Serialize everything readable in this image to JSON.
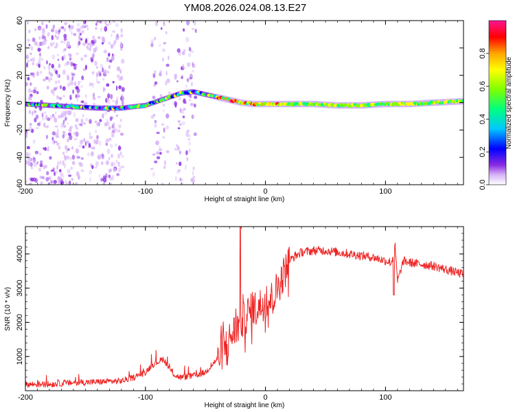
{
  "title": "YM08.2026.024.08.13.E27",
  "chart_data": [
    {
      "type": "heatmap",
      "title": "YM08.2026.024.08.13.E27",
      "xlabel": "Height of straight line (km)",
      "ylabel": "Frequency (Hz)",
      "xlim": [
        -200,
        165
      ],
      "ylim": [
        -60,
        60
      ],
      "xticks": [
        -200,
        -100,
        0,
        100
      ],
      "yticks": [
        -60,
        -40,
        -20,
        0,
        20,
        40,
        60
      ],
      "colorbar": {
        "label": "Normalized spectral amplitude",
        "range": [
          0,
          1
        ],
        "ticks": [
          0.0,
          0.2,
          0.4,
          0.6,
          0.8
        ],
        "colors": [
          "#ffffff",
          "#d8b4f8",
          "#8a2be2",
          "#0000ff",
          "#00c8ff",
          "#00ff7f",
          "#7fff00",
          "#ffff00",
          "#ffa500",
          "#ff0000",
          "#ff1493"
        ]
      },
      "ridge": {
        "x": [
          -200,
          -180,
          -160,
          -140,
          -120,
          -100,
          -90,
          -80,
          -70,
          -60,
          -50,
          -40,
          -30,
          -20,
          -10,
          0,
          20,
          40,
          60,
          80,
          100,
          120,
          140,
          165
        ],
        "freq": [
          -1,
          -2,
          -3,
          -4,
          -4,
          -2,
          1,
          4,
          7,
          8,
          6,
          4,
          2,
          0,
          -1,
          -1,
          -1,
          -1,
          -2,
          -2,
          -1,
          -1,
          0,
          1
        ]
      }
    },
    {
      "type": "line",
      "xlabel": "Height of straight line (km)",
      "ylabel": "SNR (10 * v/v)",
      "xlim": [
        -200,
        165
      ],
      "ylim": [
        0,
        4800
      ],
      "xticks": [
        -200,
        -100,
        0,
        100
      ],
      "yticks": [
        1000,
        2000,
        3000,
        4000
      ],
      "color": "#ee2222",
      "series": [
        {
          "name": "SNR",
          "x": [
            -200,
            -180,
            -160,
            -140,
            -120,
            -110,
            -100,
            -95,
            -90,
            -85,
            -80,
            -75,
            -70,
            -65,
            -60,
            -55,
            -50,
            -45,
            -40,
            -35,
            -30,
            -25,
            -20,
            -15,
            -10,
            -5,
            0,
            5,
            10,
            15,
            20,
            25,
            30,
            40,
            50,
            60,
            70,
            80,
            90,
            100,
            105,
            108,
            110,
            115,
            120,
            130,
            140,
            150,
            160,
            165
          ],
          "y": [
            150,
            150,
            200,
            220,
            250,
            350,
            500,
            700,
            800,
            900,
            600,
            400,
            350,
            380,
            400,
            450,
            500,
            700,
            900,
            1200,
            1500,
            1800,
            2000,
            2200,
            2400,
            2500,
            2600,
            2700,
            3000,
            3400,
            3800,
            3950,
            4050,
            4100,
            4100,
            4050,
            4000,
            3950,
            3900,
            3800,
            3750,
            4200,
            3200,
            3800,
            3750,
            3700,
            3650,
            3550,
            3450,
            3400
          ]
        }
      ]
    }
  ]
}
